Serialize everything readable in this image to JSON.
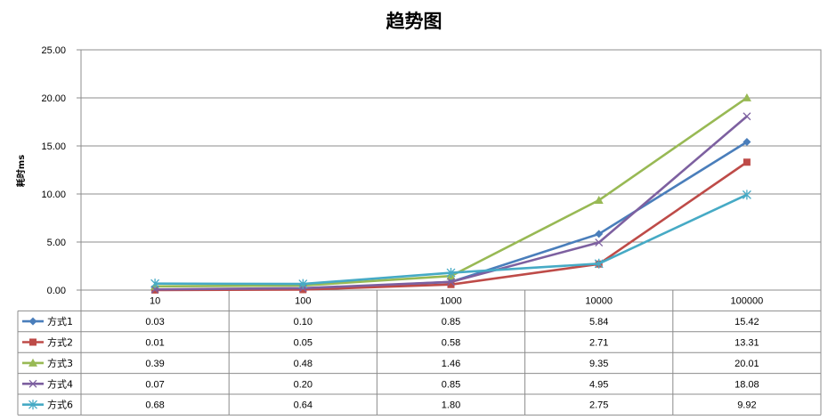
{
  "chart_data": {
    "type": "line",
    "title": "趋势图",
    "xlabel": "",
    "ylabel": "耗时ms",
    "categories": [
      "10",
      "100",
      "1000",
      "10000",
      "100000"
    ],
    "ylim": [
      0,
      25
    ],
    "yticks": [
      "0.00",
      "5.00",
      "10.00",
      "15.00",
      "20.00",
      "25.00"
    ],
    "grid": "horizontal",
    "legend": "data-table-left",
    "series": [
      {
        "name": "方式1",
        "values": [
          0.03,
          0.1,
          0.85,
          5.84,
          15.42
        ],
        "labels": [
          "0.03",
          "0.10",
          "0.85",
          "5.84",
          "15.42"
        ],
        "color": "#4A7EBB",
        "marker": "diamond"
      },
      {
        "name": "方式2",
        "values": [
          0.01,
          0.05,
          0.58,
          2.71,
          13.31
        ],
        "labels": [
          "0.01",
          "0.05",
          "0.58",
          "2.71",
          "13.31"
        ],
        "color": "#BE4B48",
        "marker": "square"
      },
      {
        "name": "方式3",
        "values": [
          0.39,
          0.48,
          1.46,
          9.35,
          20.01
        ],
        "labels": [
          "0.39",
          "0.48",
          "1.46",
          "9.35",
          "20.01"
        ],
        "color": "#98B954",
        "marker": "triangle"
      },
      {
        "name": "方式4",
        "values": [
          0.07,
          0.2,
          0.85,
          4.95,
          18.08
        ],
        "labels": [
          "0.07",
          "0.20",
          "0.85",
          "4.95",
          "18.08"
        ],
        "color": "#7D60A0",
        "marker": "x"
      },
      {
        "name": "方式6",
        "values": [
          0.68,
          0.64,
          1.8,
          2.75,
          9.92
        ],
        "labels": [
          "0.68",
          "0.64",
          "1.80",
          "2.75",
          "9.92"
        ],
        "color": "#46AAC5",
        "marker": "star"
      }
    ]
  }
}
